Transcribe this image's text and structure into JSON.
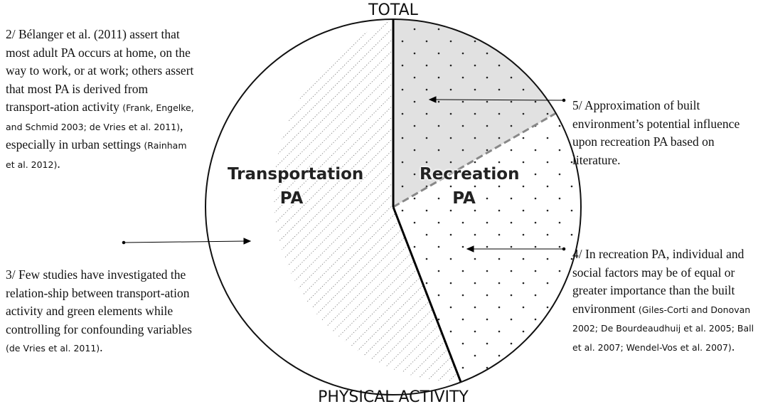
{
  "title_top": "TOTAL",
  "title_bottom": "PHYSICAL ACTIVITY",
  "segments": [
    {
      "label": "Transportation PA"
    },
    {
      "label": "Recreation PA"
    }
  ],
  "notes": [
    {
      "parts": [
        {
          "text": "2/  Bélanger et al. (2011) assert that most adult PA occurs at home, on the way to work, or at work; others assert that most PA is derived from transport-ation activity "
        },
        {
          "citation": "(Frank, Engelke, and Schmid 2003; de Vries et al. 2011)"
        },
        {
          "text": ", especially in urban settings "
        },
        {
          "citation": "(Rainham et al. 2012)"
        },
        {
          "text": "."
        }
      ]
    },
    {
      "parts": [
        {
          "text": "3/ Few studies have investigated the relation-ship between transport-ation activity and green elements while controlling for confounding variables "
        },
        {
          "citation": "(de Vries et al. 2011)"
        },
        {
          "text": "."
        }
      ]
    },
    {
      "parts": [
        {
          "text": "4/ In recreation PA, individual and social factors may be of equal or greater importance than the built environment "
        },
        {
          "citation": "(Giles-Corti and Donovan 2002; De Bourdeaudhuij et al. 2005; Ball et al. 2007; Wendel-Vos et al. 2007)"
        },
        {
          "text": "."
        }
      ]
    },
    {
      "parts": [
        {
          "text": "5/ Approximation of built environment’s potential influence upon recreation PA based on literature."
        }
      ]
    }
  ]
}
